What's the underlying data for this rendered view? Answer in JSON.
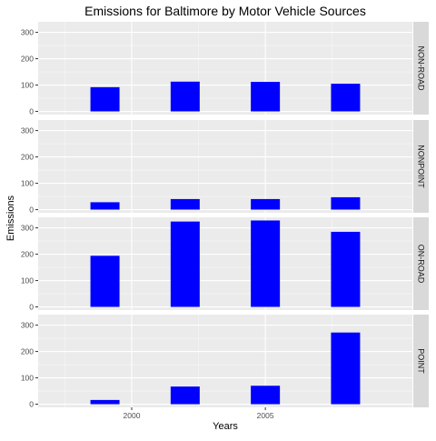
{
  "chart_data": {
    "type": "bar",
    "title": "Emissions for Baltimore by Motor Vehicle Sources",
    "xlabel": "Years",
    "ylabel": "Emissions",
    "x": [
      1999,
      2002,
      2005,
      2008
    ],
    "x_ticks": [
      2000,
      2005
    ],
    "xlim": [
      1996.5,
      2010.5
    ],
    "ylim": [
      -12,
      340
    ],
    "y_ticks": [
      0,
      100,
      200,
      300
    ],
    "grid": true,
    "bar_color": "#0000FF",
    "panel_background": "#EBEBEB",
    "strip_background": "#D9D9D9",
    "facets": [
      {
        "label": "NON-ROAD",
        "values": [
          92,
          113,
          112,
          105
        ]
      },
      {
        "label": "NONPOINT",
        "values": [
          28,
          40,
          40,
          47
        ]
      },
      {
        "label": "ON-ROAD",
        "values": [
          194,
          324,
          328,
          285
        ]
      },
      {
        "label": "POINT",
        "values": [
          16,
          67,
          70,
          272
        ]
      }
    ]
  }
}
